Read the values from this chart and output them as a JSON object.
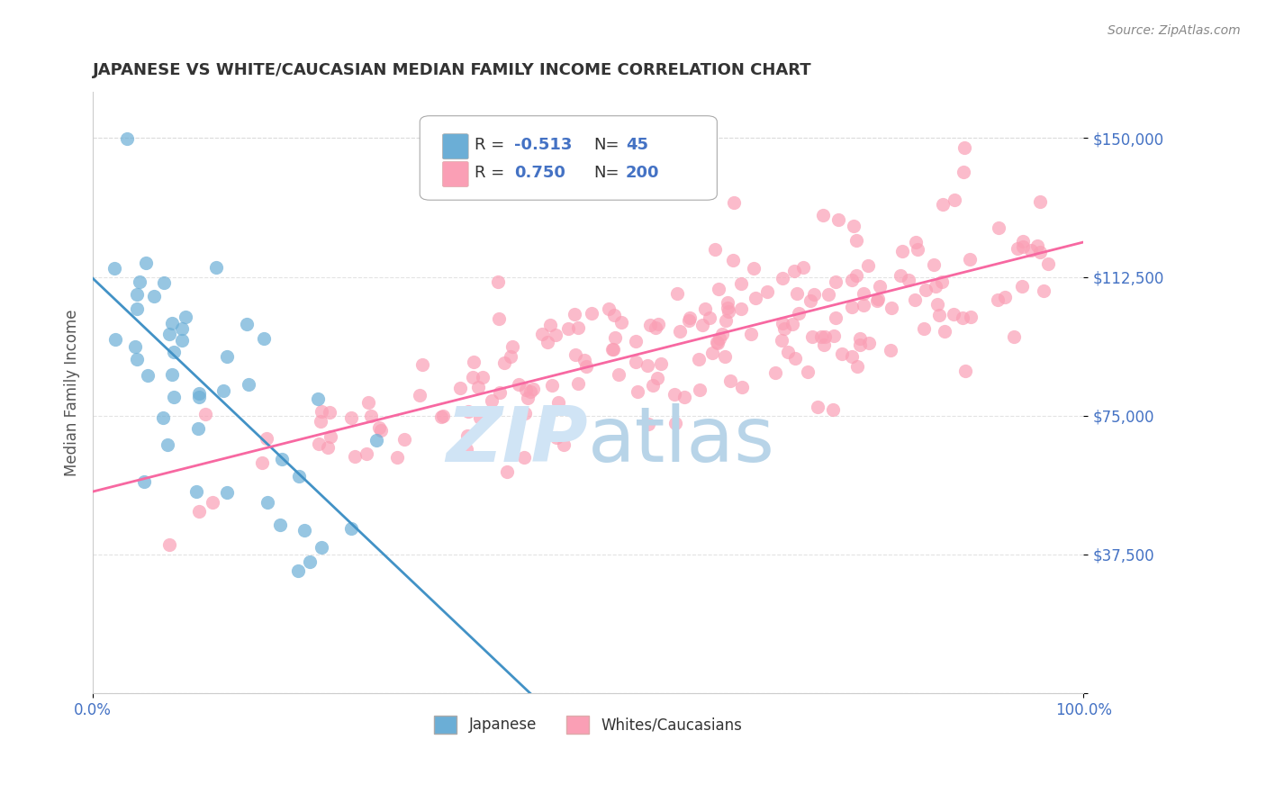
{
  "title": "JAPANESE VS WHITE/CAUCASIAN MEDIAN FAMILY INCOME CORRELATION CHART",
  "source": "Source: ZipAtlas.com",
  "xlabel": "",
  "ylabel": "Median Family Income",
  "xlim": [
    0,
    1.0
  ],
  "ylim": [
    0,
    162500
  ],
  "yticks": [
    0,
    37500,
    75000,
    112500,
    150000
  ],
  "ytick_labels": [
    "",
    "$37,500",
    "$75,000",
    "$112,500",
    "$150,000"
  ],
  "xtick_labels": [
    "0.0%",
    "100.0%"
  ],
  "legend_label1": "Japanese",
  "legend_label2": "Whites/Caucasians",
  "R1": "-0.513",
  "N1": "45",
  "R2": "0.750",
  "N2": "200",
  "color_blue": "#6baed6",
  "color_pink": "#fa9fb5",
  "color_blue_dark": "#4292c6",
  "color_pink_dark": "#f768a1",
  "color_axis": "#4472c4",
  "watermark_color": "#d0e4f5",
  "background_color": "#ffffff",
  "grid_color": "#dddddd",
  "title_color": "#333333",
  "seed": 42,
  "n_japanese": 45,
  "n_white": 200
}
